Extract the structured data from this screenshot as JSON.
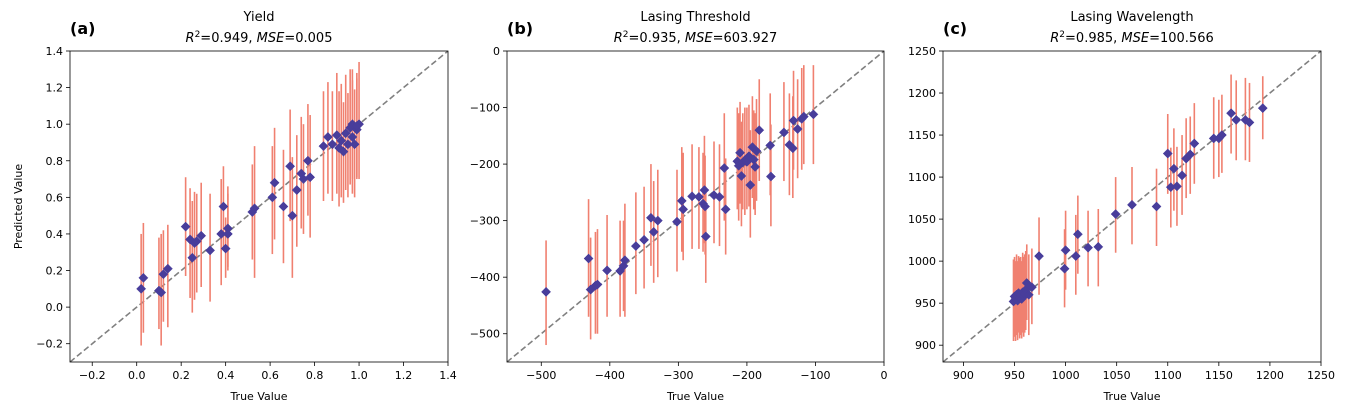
{
  "figure": {
    "errorbar_color": "#f08070",
    "marker_color": "#483d9b",
    "diagonal_color": "#808080"
  },
  "chart_data": [
    {
      "type": "scatter",
      "panel_label": "(a)",
      "title": "Yield",
      "metrics": {
        "r2_label": "R",
        "r2_exp": "2",
        "r2_value": "=0.949, ",
        "mse_label": "MSE",
        "mse_value": "=0.005"
      },
      "xlabel": "True Value",
      "ylabel": "Predicted Value",
      "xlim": [
        -0.3,
        1.4
      ],
      "ylim": [
        -0.3,
        1.4
      ],
      "xticks": [
        -0.2,
        0.0,
        0.2,
        0.4,
        0.6,
        0.8,
        1.0,
        1.2,
        1.4
      ],
      "xtick_labels": [
        "−0.2",
        "0.0",
        "0.2",
        "0.4",
        "0.6",
        "0.8",
        "1.0",
        "1.2",
        "1.4"
      ],
      "yticks": [
        -0.2,
        0.0,
        0.2,
        0.4,
        0.6,
        0.8,
        1.0,
        1.2,
        1.4
      ],
      "ytick_labels": [
        "−0.2",
        "0.0",
        "0.2",
        "0.4",
        "0.6",
        "0.8",
        "1.0",
        "1.2",
        "1.4"
      ],
      "points": [
        {
          "x": 0.02,
          "y": 0.1,
          "lo": -0.21,
          "hi": 0.4
        },
        {
          "x": 0.03,
          "y": 0.16,
          "lo": -0.14,
          "hi": 0.46
        },
        {
          "x": 0.1,
          "y": 0.09,
          "lo": -0.12,
          "hi": 0.38
        },
        {
          "x": 0.11,
          "y": 0.08,
          "lo": -0.21,
          "hi": 0.4
        },
        {
          "x": 0.12,
          "y": 0.18,
          "lo": -0.08,
          "hi": 0.42
        },
        {
          "x": 0.14,
          "y": 0.21,
          "lo": -0.11,
          "hi": 0.45
        },
        {
          "x": 0.22,
          "y": 0.44,
          "lo": 0.17,
          "hi": 0.71
        },
        {
          "x": 0.24,
          "y": 0.37,
          "lo": 0.05,
          "hi": 0.65
        },
        {
          "x": 0.25,
          "y": 0.27,
          "lo": -0.03,
          "hi": 0.58
        },
        {
          "x": 0.26,
          "y": 0.35,
          "lo": 0.04,
          "hi": 0.63
        },
        {
          "x": 0.27,
          "y": 0.36,
          "lo": 0.08,
          "hi": 0.62
        },
        {
          "x": 0.29,
          "y": 0.39,
          "lo": 0.11,
          "hi": 0.68
        },
        {
          "x": 0.33,
          "y": 0.31,
          "lo": 0.03,
          "hi": 0.62
        },
        {
          "x": 0.38,
          "y": 0.4,
          "lo": 0.12,
          "hi": 0.7
        },
        {
          "x": 0.39,
          "y": 0.55,
          "lo": 0.32,
          "hi": 0.77
        },
        {
          "x": 0.4,
          "y": 0.32,
          "lo": 0.16,
          "hi": 0.49
        },
        {
          "x": 0.41,
          "y": 0.43,
          "lo": 0.22,
          "hi": 0.66
        },
        {
          "x": 0.41,
          "y": 0.4,
          "lo": 0.2,
          "hi": 0.62
        },
        {
          "x": 0.52,
          "y": 0.52,
          "lo": 0.26,
          "hi": 0.78
        },
        {
          "x": 0.53,
          "y": 0.54,
          "lo": 0.16,
          "hi": 0.88
        },
        {
          "x": 0.61,
          "y": 0.6,
          "lo": 0.29,
          "hi": 0.88
        },
        {
          "x": 0.62,
          "y": 0.68,
          "lo": 0.37,
          "hi": 0.98
        },
        {
          "x": 0.66,
          "y": 0.55,
          "lo": 0.24,
          "hi": 0.86
        },
        {
          "x": 0.69,
          "y": 0.77,
          "lo": 0.47,
          "hi": 1.08
        },
        {
          "x": 0.7,
          "y": 0.5,
          "lo": 0.16,
          "hi": 0.82
        },
        {
          "x": 0.72,
          "y": 0.64,
          "lo": 0.33,
          "hi": 0.94
        },
        {
          "x": 0.74,
          "y": 0.73,
          "lo": 0.43,
          "hi": 1.04
        },
        {
          "x": 0.75,
          "y": 0.7,
          "lo": 0.4,
          "hi": 1.0
        },
        {
          "x": 0.77,
          "y": 0.8,
          "lo": 0.5,
          "hi": 1.11
        },
        {
          "x": 0.78,
          "y": 0.71,
          "lo": 0.38,
          "hi": 1.05
        },
        {
          "x": 0.84,
          "y": 0.88,
          "lo": 0.58,
          "hi": 1.18
        },
        {
          "x": 0.86,
          "y": 0.93,
          "lo": 0.62,
          "hi": 1.23
        },
        {
          "x": 0.88,
          "y": 0.89,
          "lo": 0.58,
          "hi": 1.18
        },
        {
          "x": 0.9,
          "y": 0.94,
          "lo": 0.62,
          "hi": 1.28
        },
        {
          "x": 0.91,
          "y": 0.87,
          "lo": 0.55,
          "hi": 1.18
        },
        {
          "x": 0.92,
          "y": 0.91,
          "lo": 0.6,
          "hi": 1.22
        },
        {
          "x": 0.93,
          "y": 0.85,
          "lo": 0.57,
          "hi": 1.12
        },
        {
          "x": 0.94,
          "y": 0.95,
          "lo": 0.64,
          "hi": 1.27
        },
        {
          "x": 0.95,
          "y": 0.89,
          "lo": 0.6,
          "hi": 1.17
        },
        {
          "x": 0.96,
          "y": 0.98,
          "lo": 0.67,
          "hi": 1.3
        },
        {
          "x": 0.97,
          "y": 1.0,
          "lo": 0.7,
          "hi": 1.3
        },
        {
          "x": 0.97,
          "y": 0.93,
          "lo": 0.62,
          "hi": 1.24
        },
        {
          "x": 0.98,
          "y": 0.89,
          "lo": 0.6,
          "hi": 1.19
        },
        {
          "x": 0.99,
          "y": 0.97,
          "lo": 0.7,
          "hi": 1.25
        },
        {
          "x": 1.0,
          "y": 1.0,
          "lo": 0.7,
          "hi": 1.34
        },
        {
          "x": 0.99,
          "y": 0.99,
          "lo": 0.71,
          "hi": 1.28
        }
      ]
    },
    {
      "type": "scatter",
      "panel_label": "(b)",
      "title": "Lasing Threshold",
      "metrics": {
        "r2_label": "R",
        "r2_exp": "2",
        "r2_value": "=0.935, ",
        "mse_label": "MSE",
        "mse_value": "=603.927"
      },
      "xlabel": "True Value",
      "ylabel": "",
      "xlim": [
        -550,
        0
      ],
      "ylim": [
        -550,
        0
      ],
      "xticks": [
        -500,
        -400,
        -300,
        -200,
        -100,
        0
      ],
      "xtick_labels": [
        "−500",
        "−400",
        "−300",
        "−200",
        "−100",
        "0"
      ],
      "yticks": [
        -500,
        -400,
        -300,
        -200,
        -100,
        0
      ],
      "yticks_labels_note": "",
      "ytick_labels": [
        "−500",
        "−400",
        "−300",
        "−200",
        "−100",
        "0"
      ],
      "points": [
        {
          "x": -493,
          "y": -426,
          "lo": -520,
          "hi": -335
        },
        {
          "x": -431,
          "y": -367,
          "lo": -470,
          "hi": -262
        },
        {
          "x": -428,
          "y": -422,
          "lo": -510,
          "hi": -330
        },
        {
          "x": -421,
          "y": -415,
          "lo": -500,
          "hi": -320
        },
        {
          "x": -418,
          "y": -413,
          "lo": -500,
          "hi": -315
        },
        {
          "x": -404,
          "y": -388,
          "lo": -470,
          "hi": -290
        },
        {
          "x": -385,
          "y": -389,
          "lo": -470,
          "hi": -300
        },
        {
          "x": -380,
          "y": -380,
          "lo": -460,
          "hi": -300
        },
        {
          "x": -378,
          "y": -370,
          "lo": -470,
          "hi": -270
        },
        {
          "x": -362,
          "y": -345,
          "lo": -430,
          "hi": -250
        },
        {
          "x": -350,
          "y": -334,
          "lo": -420,
          "hi": -240
        },
        {
          "x": -340,
          "y": -295,
          "lo": -380,
          "hi": -200
        },
        {
          "x": -336,
          "y": -320,
          "lo": -410,
          "hi": -230
        },
        {
          "x": -330,
          "y": -300,
          "lo": -400,
          "hi": -210
        },
        {
          "x": -302,
          "y": -302,
          "lo": -390,
          "hi": -210
        },
        {
          "x": -295,
          "y": -265,
          "lo": -355,
          "hi": -170
        },
        {
          "x": -293,
          "y": -280,
          "lo": -370,
          "hi": -180
        },
        {
          "x": -280,
          "y": -257,
          "lo": -350,
          "hi": -165
        },
        {
          "x": -270,
          "y": -258,
          "lo": -350,
          "hi": -170
        },
        {
          "x": -264,
          "y": -270,
          "lo": -355,
          "hi": -180
        },
        {
          "x": -262,
          "y": -246,
          "lo": -340,
          "hi": -150
        },
        {
          "x": -261,
          "y": -275,
          "lo": -360,
          "hi": -185
        },
        {
          "x": -260,
          "y": -328,
          "lo": -410,
          "hi": -240
        },
        {
          "x": -248,
          "y": -255,
          "lo": -340,
          "hi": -160
        },
        {
          "x": -240,
          "y": -258,
          "lo": -345,
          "hi": -165
        },
        {
          "x": -233,
          "y": -207,
          "lo": -300,
          "hi": -110
        },
        {
          "x": -231,
          "y": -280,
          "lo": -360,
          "hi": -190
        },
        {
          "x": -214,
          "y": -195,
          "lo": -280,
          "hi": -100
        },
        {
          "x": -212,
          "y": -203,
          "lo": -300,
          "hi": -110
        },
        {
          "x": -210,
          "y": -180,
          "lo": -270,
          "hi": -90
        },
        {
          "x": -208,
          "y": -221,
          "lo": -310,
          "hi": -125
        },
        {
          "x": -206,
          "y": -197,
          "lo": -280,
          "hi": -110
        },
        {
          "x": -203,
          "y": -193,
          "lo": -290,
          "hi": -100
        },
        {
          "x": -200,
          "y": -196,
          "lo": -280,
          "hi": -100
        },
        {
          "x": -197,
          "y": -186,
          "lo": -275,
          "hi": -95
        },
        {
          "x": -195,
          "y": -237,
          "lo": -330,
          "hi": -140
        },
        {
          "x": -192,
          "y": -170,
          "lo": -260,
          "hi": -80
        },
        {
          "x": -190,
          "y": -192,
          "lo": -280,
          "hi": -105
        },
        {
          "x": -188,
          "y": -205,
          "lo": -290,
          "hi": -110
        },
        {
          "x": -186,
          "y": -177,
          "lo": -265,
          "hi": -85
        },
        {
          "x": -182,
          "y": -140,
          "lo": -230,
          "hi": -50
        },
        {
          "x": -166,
          "y": -167,
          "lo": -255,
          "hi": -75
        },
        {
          "x": -165,
          "y": -222,
          "lo": -310,
          "hi": -130
        },
        {
          "x": -146,
          "y": -144,
          "lo": -230,
          "hi": -55
        },
        {
          "x": -138,
          "y": -166,
          "lo": -255,
          "hi": -75
        },
        {
          "x": -133,
          "y": -172,
          "lo": -260,
          "hi": -80
        },
        {
          "x": -132,
          "y": -123,
          "lo": -210,
          "hi": -35
        },
        {
          "x": -126,
          "y": -138,
          "lo": -225,
          "hi": -50
        },
        {
          "x": -120,
          "y": -120,
          "lo": -210,
          "hi": -30
        },
        {
          "x": -117,
          "y": -116,
          "lo": -200,
          "hi": -25
        },
        {
          "x": -103,
          "y": -112,
          "lo": -200,
          "hi": -25
        }
      ]
    },
    {
      "type": "scatter",
      "panel_label": "(c)",
      "title": "Lasing Wavelength",
      "metrics": {
        "r2_label": "R",
        "r2_exp": "2",
        "r2_value": "=0.985, ",
        "mse_label": "MSE",
        "mse_value": "=100.566"
      },
      "xlabel": "True Value",
      "ylabel": "",
      "xlim": [
        880,
        1250
      ],
      "ylim": [
        880,
        1250
      ],
      "xticks": [
        900,
        950,
        1000,
        1050,
        1100,
        1150,
        1200,
        1250
      ],
      "xtick_labels": [
        "900",
        "950",
        "1000",
        "1050",
        "1100",
        "1150",
        "1200",
        "1250"
      ],
      "yticks": [
        900,
        950,
        1000,
        1050,
        1100,
        1150,
        1200,
        1250
      ],
      "ytick_labels": [
        "900",
        "950",
        "1000",
        "1050",
        "1100",
        "1150",
        "1200",
        "1250"
      ],
      "points": [
        {
          "x": 949,
          "y": 952,
          "lo": 905,
          "hi": 1002
        },
        {
          "x": 950,
          "y": 958,
          "lo": 910,
          "hi": 1005
        },
        {
          "x": 951,
          "y": 955,
          "lo": 905,
          "hi": 1000
        },
        {
          "x": 952,
          "y": 960,
          "lo": 912,
          "hi": 1008
        },
        {
          "x": 953,
          "y": 953,
          "lo": 906,
          "hi": 1000
        },
        {
          "x": 954,
          "y": 962,
          "lo": 915,
          "hi": 1006
        },
        {
          "x": 955,
          "y": 956,
          "lo": 908,
          "hi": 1004
        },
        {
          "x": 956,
          "y": 960,
          "lo": 912,
          "hi": 1005
        },
        {
          "x": 957,
          "y": 955,
          "lo": 908,
          "hi": 1000
        },
        {
          "x": 958,
          "y": 963,
          "lo": 915,
          "hi": 1010
        },
        {
          "x": 959,
          "y": 958,
          "lo": 910,
          "hi": 1005
        },
        {
          "x": 960,
          "y": 961,
          "lo": 915,
          "hi": 1008
        },
        {
          "x": 961,
          "y": 966,
          "lo": 918,
          "hi": 1012
        },
        {
          "x": 962,
          "y": 974,
          "lo": 930,
          "hi": 1020
        },
        {
          "x": 964,
          "y": 960,
          "lo": 912,
          "hi": 1008
        },
        {
          "x": 967,
          "y": 969,
          "lo": 925,
          "hi": 1015
        },
        {
          "x": 974,
          "y": 1006,
          "lo": 960,
          "hi": 1052
        },
        {
          "x": 999,
          "y": 991,
          "lo": 945,
          "hi": 1038
        },
        {
          "x": 1000,
          "y": 1013,
          "lo": 966,
          "hi": 1060
        },
        {
          "x": 1010,
          "y": 1006,
          "lo": 960,
          "hi": 1055
        },
        {
          "x": 1012,
          "y": 1032,
          "lo": 985,
          "hi": 1078
        },
        {
          "x": 1022,
          "y": 1016,
          "lo": 970,
          "hi": 1060
        },
        {
          "x": 1032,
          "y": 1017,
          "lo": 970,
          "hi": 1062
        },
        {
          "x": 1049,
          "y": 1056,
          "lo": 1010,
          "hi": 1100
        },
        {
          "x": 1065,
          "y": 1067,
          "lo": 1020,
          "hi": 1112
        },
        {
          "x": 1089,
          "y": 1065,
          "lo": 1018,
          "hi": 1110
        },
        {
          "x": 1100,
          "y": 1128,
          "lo": 1080,
          "hi": 1175
        },
        {
          "x": 1103,
          "y": 1088,
          "lo": 1040,
          "hi": 1135
        },
        {
          "x": 1106,
          "y": 1110,
          "lo": 1060,
          "hi": 1158
        },
        {
          "x": 1109,
          "y": 1089,
          "lo": 1042,
          "hi": 1136
        },
        {
          "x": 1114,
          "y": 1102,
          "lo": 1055,
          "hi": 1150
        },
        {
          "x": 1118,
          "y": 1122,
          "lo": 1075,
          "hi": 1170
        },
        {
          "x": 1122,
          "y": 1127,
          "lo": 1080,
          "hi": 1172
        },
        {
          "x": 1126,
          "y": 1140,
          "lo": 1092,
          "hi": 1188
        },
        {
          "x": 1145,
          "y": 1146,
          "lo": 1098,
          "hi": 1195
        },
        {
          "x": 1150,
          "y": 1146,
          "lo": 1100,
          "hi": 1192
        },
        {
          "x": 1153,
          "y": 1150,
          "lo": 1105,
          "hi": 1198
        },
        {
          "x": 1162,
          "y": 1176,
          "lo": 1128,
          "hi": 1222
        },
        {
          "x": 1167,
          "y": 1168,
          "lo": 1120,
          "hi": 1215
        },
        {
          "x": 1176,
          "y": 1168,
          "lo": 1120,
          "hi": 1218
        },
        {
          "x": 1180,
          "y": 1165,
          "lo": 1118,
          "hi": 1212
        },
        {
          "x": 1193,
          "y": 1182,
          "lo": 1145,
          "hi": 1220
        }
      ]
    }
  ]
}
